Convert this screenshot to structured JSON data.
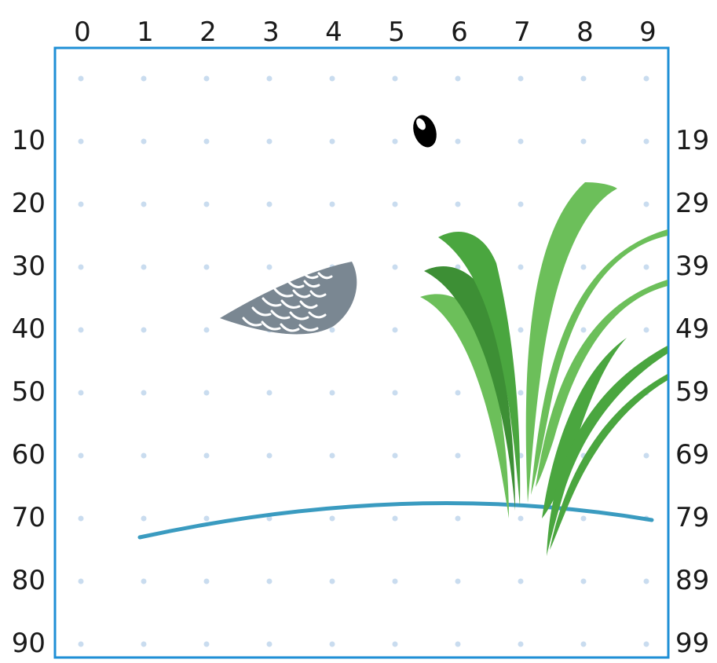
{
  "grid": {
    "top_labels": [
      "0",
      "1",
      "2",
      "3",
      "4",
      "5",
      "6",
      "7",
      "8",
      "9"
    ],
    "left_labels": [
      "10",
      "20",
      "30",
      "40",
      "50",
      "60",
      "70",
      "80",
      "90"
    ],
    "right_labels": [
      "19",
      "29",
      "39",
      "49",
      "59",
      "69",
      "79",
      "89",
      "99"
    ],
    "frame_color": "#1f8fd6",
    "dot_color": "#c9dcef"
  },
  "objects": {
    "eye": {
      "icon": "eye-icon",
      "color": "#000000"
    },
    "wing": {
      "icon": "wing-icon",
      "color": "#7a8792",
      "feather_color": "#ffffff"
    },
    "grass": {
      "icon": "grass-icon",
      "colors": [
        "#4aa63f",
        "#6cbf5a",
        "#3d8f35"
      ]
    },
    "ground_line": {
      "icon": "ground-line",
      "color": "#3a9bc0"
    }
  }
}
